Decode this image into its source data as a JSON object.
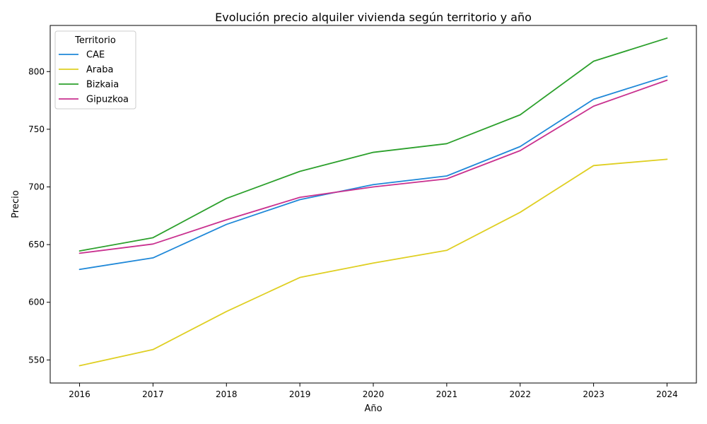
{
  "chart_data": {
    "type": "line",
    "title": "Evolución precio alquiler vivienda según territorio y año",
    "xlabel": "Año",
    "ylabel": "Precio",
    "x": [
      2016,
      2017,
      2018,
      2019,
      2020,
      2021,
      2022,
      2023,
      2024
    ],
    "xlim": [
      2015.6,
      2024.4
    ],
    "ylim": [
      530,
      840
    ],
    "yticks": [
      550,
      600,
      650,
      700,
      750,
      800
    ],
    "grid": false,
    "legend": {
      "title": "Territorio",
      "placement": "top-left"
    },
    "series": [
      {
        "name": "CAE",
        "color": "#1f88d8",
        "values": [
          628.5,
          638.5,
          667.5,
          689,
          702,
          709.5,
          735,
          776,
          796
        ]
      },
      {
        "name": "Araba",
        "color": "#dfcf22",
        "values": [
          545,
          559,
          592,
          621.5,
          634,
          645,
          678,
          718.5,
          724
        ]
      },
      {
        "name": "Bizkaia",
        "color": "#2ca02c",
        "values": [
          644.5,
          656,
          690,
          713.5,
          730,
          737.5,
          762.5,
          809,
          829
        ]
      },
      {
        "name": "Gipuzkoa",
        "color": "#c9318f",
        "values": [
          642.5,
          650.5,
          671.5,
          691,
          700,
          707,
          731.5,
          770,
          792.5
        ]
      }
    ]
  }
}
